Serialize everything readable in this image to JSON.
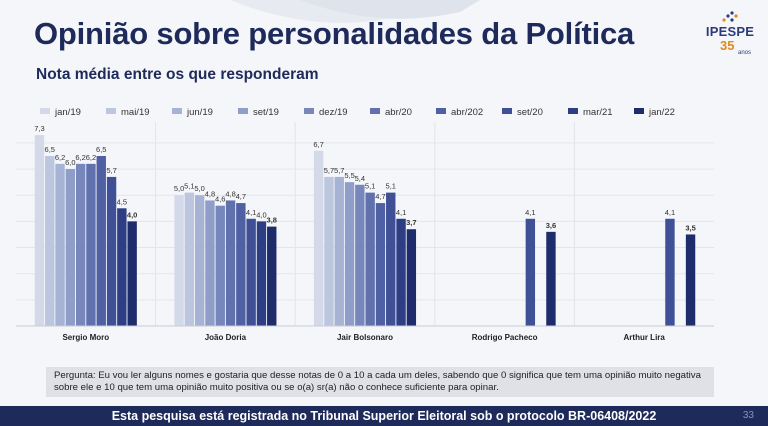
{
  "header": {
    "title": "Opinião sobre personalidades da Política",
    "subtitle": "Nota média entre os que responderam"
  },
  "logo": {
    "brand": "IPESPE",
    "years": "35",
    "years_label": "anos",
    "colors": {
      "brand": "#2b3a7a",
      "accent": "#e08a1e"
    }
  },
  "chart_data": {
    "type": "bar",
    "categories": [
      "Sergio Moro",
      "João Doria",
      "Jair Bolsonaro",
      "Rodrigo Pacheco",
      "Arthur Lira"
    ],
    "series": [
      {
        "name": "jan/19",
        "color": "#d3d9e8",
        "values": [
          7.3,
          5.0,
          6.7,
          null,
          null
        ]
      },
      {
        "name": "mai/19",
        "color": "#bcc6df",
        "values": [
          6.5,
          5.1,
          5.7,
          null,
          null
        ]
      },
      {
        "name": "jun/19",
        "color": "#a7b3d4",
        "values": [
          6.2,
          5.0,
          5.7,
          null,
          null
        ]
      },
      {
        "name": "set/19",
        "color": "#8f9ec8",
        "values": [
          6.0,
          4.8,
          5.5,
          null,
          null
        ]
      },
      {
        "name": "dez/19",
        "color": "#7787bc",
        "values": [
          6.2,
          4.6,
          5.4,
          null,
          null
        ]
      },
      {
        "name": "abr/20",
        "color": "#6071ae",
        "values": [
          6.2,
          4.8,
          5.1,
          null,
          null
        ]
      },
      {
        "name": "abr/202",
        "color": "#4f61a3",
        "values": [
          6.5,
          4.7,
          4.7,
          null,
          null
        ]
      },
      {
        "name": "set/20",
        "color": "#3f5097",
        "values": [
          5.7,
          4.1,
          5.1,
          4.1,
          4.1
        ]
      },
      {
        "name": "mar/21",
        "color": "#2d3e84",
        "values": [
          4.5,
          4.0,
          4.1,
          null,
          null
        ]
      },
      {
        "name": "jan/22",
        "color": "#1e2c6b",
        "values": [
          4.0,
          3.8,
          3.7,
          3.6,
          3.5
        ]
      }
    ],
    "value_labels": {
      "decimal": ",",
      "bold_series": "jan/22"
    },
    "ylim": [
      0,
      7.8
    ],
    "grid": true,
    "legend": "top",
    "xlabel": "",
    "ylabel": ""
  },
  "question": {
    "text": "Pergunta: Eu vou ler alguns nomes e gostaria que desse notas de 0 a 10 a cada um deles, sabendo que 0 significa que tem uma opinião muito negativa sobre ele e 10 que tem uma opinião muito positiva ou se o(a) sr(a) não o conhece suficiente para opinar."
  },
  "footer": {
    "text": "Esta pesquisa está registrada no Tribunal Superior Eleitoral sob o protocolo BR-06408/2022",
    "page_number": "33"
  }
}
